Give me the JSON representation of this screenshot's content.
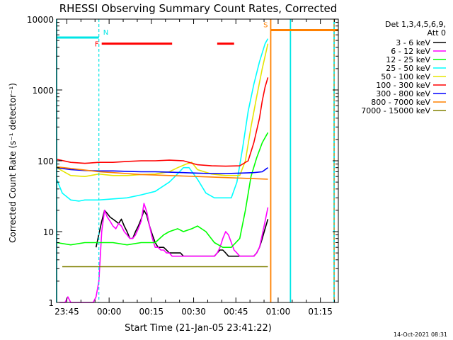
{
  "chart_data": {
    "type": "line",
    "title": "RHESSI Observing Summary Count Rates, Corrected",
    "xlabel": "Start Time (21-Jan-05 23:41:22)",
    "ylabel": "Corrected Count Rate (s⁻¹ detector⁻¹)",
    "yscale": "log",
    "ylim": [
      1,
      10000
    ],
    "xlim_minutes": [
      0,
      100
    ],
    "x_tick_labels": [
      "23:45",
      "00:00",
      "00:15",
      "00:30",
      "00:45",
      "01:00",
      "01:15"
    ],
    "x_tick_minutes": [
      3.63,
      18.63,
      33.63,
      48.63,
      63.63,
      78.63,
      93.63
    ],
    "y_tick_labels": [
      "1",
      "10",
      "100",
      "1000",
      "10000"
    ],
    "y_tick_values": [
      1,
      10,
      100,
      1000,
      10000
    ],
    "legend_title": "Det 1,3,4,5,6,9,",
    "legend_subtitle": "Att 0",
    "legend_position": "top-right, outside plot",
    "timestamp": "14-Oct-2021 08:31",
    "flags": [
      {
        "label": "N",
        "color": "#00e5e5",
        "bar_segments_minutes": [
          [
            0,
            15
          ]
        ],
        "bar_value": 5500,
        "marker_minutes": 15,
        "dashed": true
      },
      {
        "label": "F",
        "color": "#ff0000",
        "bar_segments_minutes": [
          [
            16,
            41
          ],
          [
            57,
            63
          ]
        ],
        "bar_value": 4500
      },
      {
        "label": "S",
        "color": "#ff8000",
        "bar_segments_minutes": [
          [
            76,
            100
          ]
        ],
        "bar_value": 7000,
        "marker_minutes": 76,
        "dashed": false
      }
    ],
    "vertical_markers": [
      {
        "minutes": 0,
        "color": "#00e5e5",
        "dashed": false
      },
      {
        "minutes": 15,
        "color": "#00e5e5",
        "dashed": true
      },
      {
        "minutes": 76,
        "color": "#ff8000",
        "dashed": false
      },
      {
        "minutes": 83,
        "color": "#00e5e5",
        "dashed": false
      },
      {
        "minutes": 98.5,
        "color": "#00e5e5",
        "dashed": false
      },
      {
        "minutes": 98.5,
        "color": "#ff8000",
        "dashed": true
      }
    ],
    "series": [
      {
        "name": "3 - 6 keV",
        "color": "#000000",
        "x": [
          14,
          16,
          17,
          18,
          19,
          20,
          21,
          22,
          23,
          24,
          25,
          26,
          27,
          28,
          29,
          30,
          31,
          32,
          33,
          34,
          35,
          36,
          37,
          38,
          39,
          40,
          41,
          42,
          43,
          44,
          45,
          46,
          47,
          48,
          49,
          50,
          51,
          52,
          53,
          54,
          55,
          56,
          57,
          58,
          59,
          60,
          61,
          62,
          63,
          64,
          65,
          66,
          67,
          68,
          69,
          70,
          71,
          72,
          73,
          74,
          75
        ],
        "y": [
          6,
          14,
          20,
          18,
          16,
          15,
          14,
          13,
          15,
          12,
          10,
          8,
          8,
          10,
          12,
          15,
          20,
          17,
          12,
          9,
          7,
          6,
          6,
          6,
          5.5,
          5,
          5,
          5,
          5,
          5,
          4.5,
          4.5,
          4.5,
          4.5,
          4.5,
          4.5,
          4.5,
          4.5,
          4.5,
          4.5,
          4.5,
          4.5,
          5,
          5.5,
          5.5,
          5,
          4.5,
          4.5,
          4.5,
          4.5,
          4.5,
          4.5,
          4.5,
          4.5,
          4.5,
          4.5,
          5,
          6,
          8,
          11,
          15
        ]
      },
      {
        "name": "6 - 12 keV",
        "color": "#ff00ff",
        "x": [
          1,
          2,
          3,
          4,
          5,
          6,
          7,
          8,
          9,
          10,
          11,
          12,
          13,
          14,
          15,
          16,
          17,
          18,
          19,
          20,
          21,
          22,
          23,
          24,
          25,
          26,
          27,
          28,
          29,
          30,
          31,
          32,
          33,
          34,
          35,
          36,
          37,
          38,
          39,
          40,
          41,
          42,
          43,
          44,
          45,
          46,
          47,
          48,
          49,
          50,
          51,
          52,
          53,
          54,
          55,
          56,
          57,
          58,
          59,
          60,
          61,
          62,
          63,
          64,
          65,
          66,
          67,
          68,
          69,
          70,
          71,
          72,
          73,
          74,
          75
        ],
        "y": [
          1,
          1,
          1,
          1.2,
          1,
          1,
          1,
          1,
          1,
          1,
          1,
          1,
          1,
          1.2,
          2,
          10,
          20,
          16,
          14,
          12,
          11,
          13,
          12,
          10,
          9,
          8,
          8,
          9,
          11,
          14,
          25,
          19,
          12,
          8,
          6,
          6,
          5.5,
          5.5,
          5,
          5,
          4.5,
          4.5,
          4.5,
          4.5,
          4.5,
          4.5,
          4.5,
          4.5,
          4.5,
          4.5,
          4.5,
          4.5,
          4.5,
          4.5,
          4.5,
          4.5,
          5,
          6,
          8,
          10,
          9,
          7,
          5.5,
          5,
          4.5,
          4.5,
          4.5,
          4.5,
          4.5,
          4.5,
          5,
          6,
          9,
          14,
          22
        ]
      },
      {
        "name": "12 - 25 keV",
        "color": "#00ff00",
        "x": [
          0,
          5,
          10,
          15,
          20,
          25,
          30,
          35,
          38,
          40,
          43,
          45,
          48,
          50,
          53,
          56,
          59,
          62,
          65,
          67,
          69,
          71,
          73,
          75
        ],
        "y": [
          7,
          6.5,
          7,
          7,
          7,
          6.5,
          7,
          7,
          9,
          10,
          11,
          10,
          11,
          12,
          10,
          7,
          6,
          6,
          8,
          20,
          60,
          110,
          180,
          250
        ]
      },
      {
        "name": "25 - 50 keV",
        "color": "#00ffff",
        "x": [
          0,
          2,
          5,
          8,
          10,
          12,
          15,
          20,
          25,
          30,
          35,
          40,
          42,
          45,
          47,
          50,
          53,
          56,
          59,
          62,
          64,
          66,
          68,
          70,
          72,
          74,
          75
        ],
        "y": [
          55,
          35,
          28,
          27,
          28,
          28,
          28,
          29,
          30,
          33,
          37,
          50,
          60,
          80,
          80,
          55,
          35,
          30,
          30,
          30,
          50,
          150,
          500,
          1200,
          2500,
          4500,
          5300
        ]
      },
      {
        "name": "50 - 100 keV",
        "color": "#e5e500",
        "x": [
          0,
          5,
          10,
          15,
          20,
          25,
          30,
          35,
          40,
          43,
          46,
          48,
          50,
          55,
          60,
          65,
          67,
          69,
          71,
          73,
          75
        ],
        "y": [
          80,
          62,
          60,
          65,
          62,
          62,
          64,
          65,
          70,
          80,
          90,
          95,
          75,
          65,
          62,
          62,
          100,
          300,
          800,
          2000,
          4500
        ]
      },
      {
        "name": "100 - 300 keV",
        "color": "#ff0000",
        "x": [
          0,
          5,
          10,
          15,
          20,
          25,
          30,
          35,
          40,
          45,
          50,
          55,
          60,
          65,
          68,
          70,
          72,
          73,
          74,
          75
        ],
        "y": [
          105,
          95,
          92,
          95,
          95,
          98,
          100,
          100,
          102,
          100,
          88,
          85,
          84,
          85,
          100,
          180,
          400,
          700,
          1100,
          1500
        ]
      },
      {
        "name": "300 - 800 keV",
        "color": "#0000ff",
        "x": [
          0,
          5,
          10,
          15,
          20,
          25,
          30,
          35,
          40,
          45,
          50,
          55,
          60,
          65,
          70,
          73,
          75
        ],
        "y": [
          80,
          75,
          73,
          72,
          72,
          71,
          70,
          70,
          69,
          68,
          67,
          66,
          66,
          67,
          68,
          70,
          80
        ]
      },
      {
        "name": "800 - 7000 keV",
        "color": "#ff8000",
        "x": [
          0,
          5,
          10,
          15,
          20,
          25,
          30,
          35,
          40,
          45,
          50,
          55,
          60,
          65,
          70,
          75
        ],
        "y": [
          82,
          78,
          74,
          70,
          68,
          66,
          64,
          63,
          62,
          61,
          60,
          59,
          58,
          57,
          56,
          55
        ]
      },
      {
        "name": "7000 - 15000 keV",
        "color": "#808000",
        "x": [
          2,
          75
        ],
        "y": [
          3.2,
          3.2
        ]
      }
    ]
  }
}
